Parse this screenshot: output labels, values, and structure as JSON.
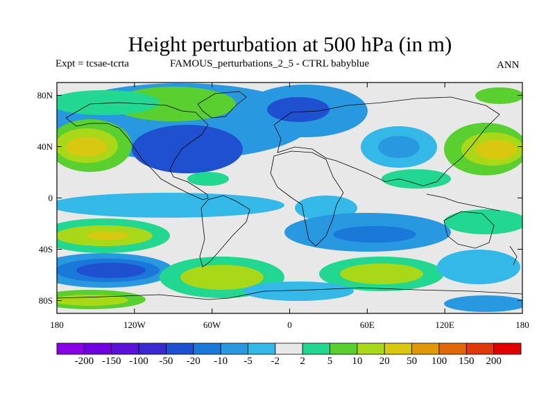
{
  "header": {
    "title": "Height perturbation at 500 hPa (in m)",
    "expt": "Expt = tcsae-tcrta",
    "description": "FAMOUS_perturbations_2_5 - CTRL babyblue",
    "season": "ANN"
  },
  "axes": {
    "y_ticks": [
      {
        "label": "80N",
        "lat": 80
      },
      {
        "label": "40N",
        "lat": 40
      },
      {
        "label": "0",
        "lat": 0
      },
      {
        "label": "40S",
        "lat": -40
      },
      {
        "label": "80S",
        "lat": -80
      }
    ],
    "x_ticks": [
      {
        "label": "180",
        "lon": -180
      },
      {
        "label": "120W",
        "lon": -120
      },
      {
        "label": "60W",
        "lon": -60
      },
      {
        "label": "0",
        "lon": 0
      },
      {
        "label": "60E",
        "lon": 60
      },
      {
        "label": "120E",
        "lon": 120
      },
      {
        "label": "180",
        "lon": 180
      }
    ]
  },
  "colorbar": {
    "colors": [
      "#8a00e6",
      "#6f00e0",
      "#5a12d8",
      "#3a2ad0",
      "#1f50d0",
      "#1a78d8",
      "#2898e0",
      "#34b8e8",
      "#e8e8e8",
      "#22d890",
      "#5ad030",
      "#a8d818",
      "#d8c810",
      "#e09808",
      "#e06808",
      "#e03808",
      "#e00000"
    ],
    "labels": [
      "-200",
      "-150",
      "-100",
      "-50",
      "-20",
      "-10",
      "-5",
      "-2",
      "2",
      "5",
      "10",
      "20",
      "50",
      "100",
      "150",
      "200"
    ]
  },
  "field_colors": {
    "neutral": "#e8e8e8",
    "c_m20": "#1f50d0",
    "c_m10": "#1a78d8",
    "c_m5": "#2898e0",
    "c_m2": "#34b8e8",
    "c_p2": "#22d890",
    "c_p5": "#5ad030",
    "c_p10": "#a8d818",
    "c_p20": "#d8c810",
    "c_m50": "#3a2ad0",
    "c_m100": "#5a12d8"
  }
}
